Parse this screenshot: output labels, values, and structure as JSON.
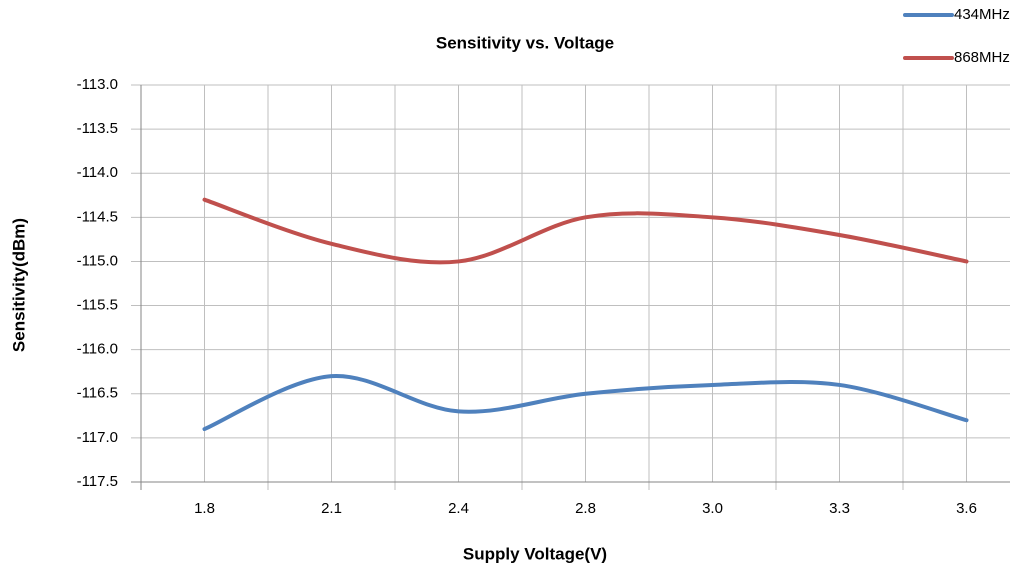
{
  "chart_data": {
    "type": "line",
    "title": "Sensitivity vs. Voltage",
    "x_label": "Supply Voltage(V)",
    "y_label": "Sensitivity(dBm)",
    "categories": [
      "1.8",
      "2.1",
      "2.4",
      "2.8",
      "3.0",
      "3.3",
      "3.6"
    ],
    "series": [
      {
        "name": "434MHz",
        "color": "#4f81bd",
        "values": [
          -116.9,
          -116.3,
          -116.7,
          -116.5,
          -116.4,
          -116.4,
          -116.8
        ]
      },
      {
        "name": "868MHz",
        "color": "#c0504d",
        "values": [
          -114.3,
          -114.8,
          -115.0,
          -114.5,
          -114.5,
          -114.7,
          -115.0
        ]
      }
    ],
    "ylim": [
      -117.5,
      -113.0
    ],
    "yticks": [
      {
        "value": -117.5,
        "label": "-117.5"
      },
      {
        "value": -117,
        "label": "-117.0"
      },
      {
        "value": -116.5,
        "label": "-116.5"
      },
      {
        "value": -116,
        "label": "-116.0"
      },
      {
        "value": -115.5,
        "label": "-115.5"
      },
      {
        "value": -115,
        "label": "-115.0"
      },
      {
        "value": -114.5,
        "label": "-114.5"
      },
      {
        "value": -114,
        "label": "-114.0"
      },
      {
        "value": -113.5,
        "label": "-113.5"
      },
      {
        "value": -113,
        "label": "-113.0"
      }
    ],
    "grid": true,
    "smooth": true,
    "legend": "top-right"
  }
}
